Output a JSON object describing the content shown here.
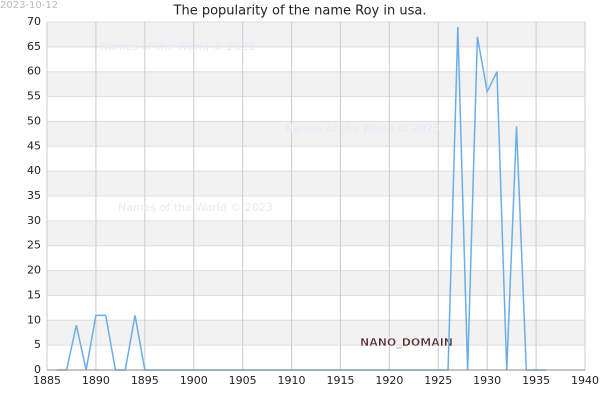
{
  "chart_data": {
    "type": "line",
    "title": "The popularity of the name Roy in usa.",
    "date": "2023-10-12",
    "watermarks": [
      "Names of the World © 2023",
      "Names of the World © 2023",
      "Names of the World © 2023"
    ],
    "domain_label": "NANO_DOMAIN",
    "x": [
      1886,
      1887,
      1888,
      1889,
      1890,
      1891,
      1892,
      1893,
      1894,
      1895,
      1896,
      1897,
      1898,
      1899,
      1900,
      1901,
      1902,
      1903,
      1904,
      1905,
      1906,
      1907,
      1908,
      1909,
      1910,
      1911,
      1912,
      1913,
      1914,
      1915,
      1916,
      1917,
      1918,
      1919,
      1920,
      1921,
      1922,
      1923,
      1924,
      1925,
      1926,
      1927,
      1928,
      1929,
      1930,
      1931,
      1932,
      1933,
      1934,
      1935,
      1936
    ],
    "series": [
      {
        "name": "Roy",
        "color": "#6aaee8",
        "values": [
          0,
          0,
          9,
          0,
          11,
          11,
          0,
          0,
          11,
          0,
          0,
          0,
          0,
          0,
          0,
          0,
          0,
          0,
          0,
          0,
          0,
          0,
          0,
          0,
          0,
          0,
          0,
          0,
          0,
          0,
          0,
          0,
          0,
          0,
          0,
          0,
          0,
          0,
          0,
          0,
          0,
          69,
          0,
          67,
          56,
          60,
          0,
          49,
          0,
          0,
          0
        ]
      }
    ],
    "xlim": [
      1885,
      1940
    ],
    "xticks": [
      1885,
      1890,
      1895,
      1900,
      1905,
      1910,
      1915,
      1920,
      1925,
      1930,
      1935,
      1940
    ],
    "ylim": [
      0,
      70
    ],
    "yticks": [
      0,
      5,
      10,
      15,
      20,
      25,
      30,
      35,
      40,
      45,
      50,
      55,
      60,
      65,
      70
    ],
    "grid": true,
    "banded_background": true
  }
}
